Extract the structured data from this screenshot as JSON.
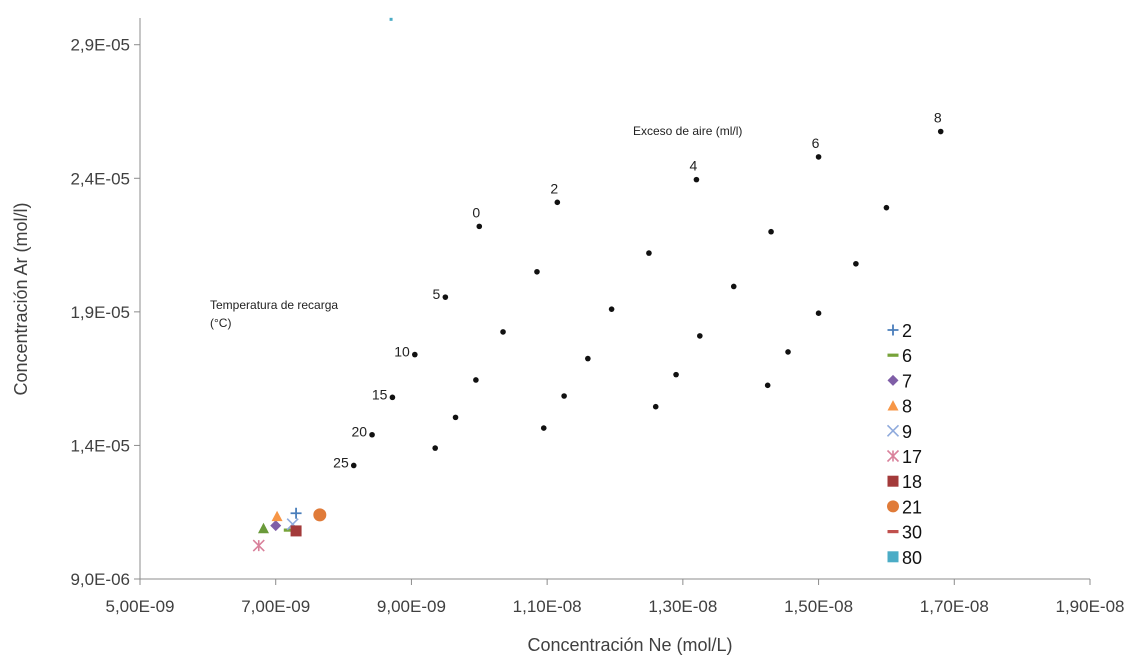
{
  "chart_data": {
    "type": "scatter",
    "xlabel": "Concentración Ne (mol/L)",
    "ylabel": "Concentración Ar (mol/l)",
    "xlim": [
      5e-09,
      1.9e-08
    ],
    "ylim": [
      9e-06,
      3e-05
    ],
    "x_ticks": [
      5e-09,
      7e-09,
      9e-09,
      1.1e-08,
      1.3e-08,
      1.5e-08,
      1.7e-08,
      1.9e-08
    ],
    "x_tick_labels": [
      "5,00E-09",
      "7,00E-09",
      "9,00E-09",
      "1,10E-08",
      "1,30E-08",
      "1,50E-08",
      "1,70E-08",
      "1,90E-08"
    ],
    "y_ticks": [
      9e-06,
      1.4e-05,
      1.9e-05,
      2.4e-05,
      2.9e-05
    ],
    "y_tick_labels": [
      "9,0E-06",
      "1,4E-05",
      "1,9E-05",
      "2,4E-05",
      "2,9E-05"
    ],
    "grid": false,
    "legend_position": "right",
    "annotations": {
      "excess_air_title": "Exceso de aire (ml/l)",
      "recharge_temp_title_line1": "Temperatura de recarga",
      "recharge_temp_title_line2": "(°C)"
    },
    "grid_points": [
      {
        "x": 1e-08,
        "y": 2.22e-05,
        "label": "0"
      },
      {
        "x": 9.5e-09,
        "y": 1.955e-05,
        "label": "5"
      },
      {
        "x": 9.05e-09,
        "y": 1.74e-05,
        "label": "10"
      },
      {
        "x": 8.72e-09,
        "y": 1.58e-05,
        "label": "15"
      },
      {
        "x": 8.42e-09,
        "y": 1.44e-05,
        "label": "20"
      },
      {
        "x": 8.15e-09,
        "y": 1.325e-05,
        "label": "25"
      },
      {
        "x": 1.115e-08,
        "y": 2.31e-05,
        "label": "2"
      },
      {
        "x": 1.32e-08,
        "y": 2.395e-05,
        "label": "4"
      },
      {
        "x": 1.5e-08,
        "y": 2.48e-05,
        "label": "6"
      },
      {
        "x": 1.68e-08,
        "y": 2.575e-05,
        "label": "8"
      },
      {
        "x": 1.085e-08,
        "y": 2.05e-05,
        "label": ""
      },
      {
        "x": 1.25e-08,
        "y": 2.12e-05,
        "label": ""
      },
      {
        "x": 1.43e-08,
        "y": 2.2e-05,
        "label": ""
      },
      {
        "x": 1.6e-08,
        "y": 2.29e-05,
        "label": ""
      },
      {
        "x": 1.035e-08,
        "y": 1.825e-05,
        "label": ""
      },
      {
        "x": 1.195e-08,
        "y": 1.91e-05,
        "label": ""
      },
      {
        "x": 1.375e-08,
        "y": 1.995e-05,
        "label": ""
      },
      {
        "x": 1.555e-08,
        "y": 2.08e-05,
        "label": ""
      },
      {
        "x": 9.95e-09,
        "y": 1.645e-05,
        "label": ""
      },
      {
        "x": 1.16e-08,
        "y": 1.725e-05,
        "label": ""
      },
      {
        "x": 1.325e-08,
        "y": 1.81e-05,
        "label": ""
      },
      {
        "x": 1.5e-08,
        "y": 1.895e-05,
        "label": ""
      },
      {
        "x": 9.65e-09,
        "y": 1.505e-05,
        "label": ""
      },
      {
        "x": 1.125e-08,
        "y": 1.585e-05,
        "label": ""
      },
      {
        "x": 1.29e-08,
        "y": 1.665e-05,
        "label": ""
      },
      {
        "x": 1.455e-08,
        "y": 1.75e-05,
        "label": ""
      },
      {
        "x": 9.35e-09,
        "y": 1.39e-05,
        "label": ""
      },
      {
        "x": 1.095e-08,
        "y": 1.465e-05,
        "label": ""
      },
      {
        "x": 1.26e-08,
        "y": 1.545e-05,
        "label": ""
      },
      {
        "x": 1.425e-08,
        "y": 1.625e-05,
        "label": ""
      }
    ],
    "series": [
      {
        "name": "2",
        "marker": "plus",
        "color": "#4a7ebb",
        "points": [
          {
            "x": 7.3e-09,
            "y": 1.146e-05
          }
        ]
      },
      {
        "name": "6",
        "marker": "dash",
        "color": "#77a33a",
        "points": [
          {
            "x": 7.2e-09,
            "y": 1.083e-05
          }
        ]
      },
      {
        "name": "7",
        "marker": "diamond",
        "color": "#7f5ea7",
        "points": [
          {
            "x": 7e-09,
            "y": 1.1e-05
          }
        ]
      },
      {
        "name": "8",
        "marker": "triangle",
        "color": "#f79646",
        "points": [
          {
            "x": 7.02e-09,
            "y": 1.135e-05
          }
        ]
      },
      {
        "name": "9",
        "marker": "x",
        "color": "#8faadc",
        "points": [
          {
            "x": 7.25e-09,
            "y": 1.105e-05
          }
        ]
      },
      {
        "name": "17",
        "marker": "star",
        "color": "#d9819b",
        "points": [
          {
            "x": 6.75e-09,
            "y": 1.025e-05
          }
        ]
      },
      {
        "name": "18",
        "marker": "square",
        "color": "#a33a3a",
        "points": [
          {
            "x": 7.3e-09,
            "y": 1.08e-05
          }
        ]
      },
      {
        "name": "21",
        "marker": "circle",
        "color": "#e07b39",
        "points": [
          {
            "x": 7.65e-09,
            "y": 1.14e-05
          }
        ]
      },
      {
        "name": "30",
        "marker": "dash",
        "color": "#c0504d",
        "points": []
      },
      {
        "name": "80",
        "marker": "square",
        "color": "#4bacc6",
        "points": [
          {
            "x": 8.7e-09,
            "y": 2.995e-05
          }
        ]
      },
      {
        "name": "",
        "marker": "triangle",
        "color": "#6a9a3a",
        "points": [
          {
            "x": 6.82e-09,
            "y": 1.09e-05
          }
        ]
      }
    ]
  }
}
